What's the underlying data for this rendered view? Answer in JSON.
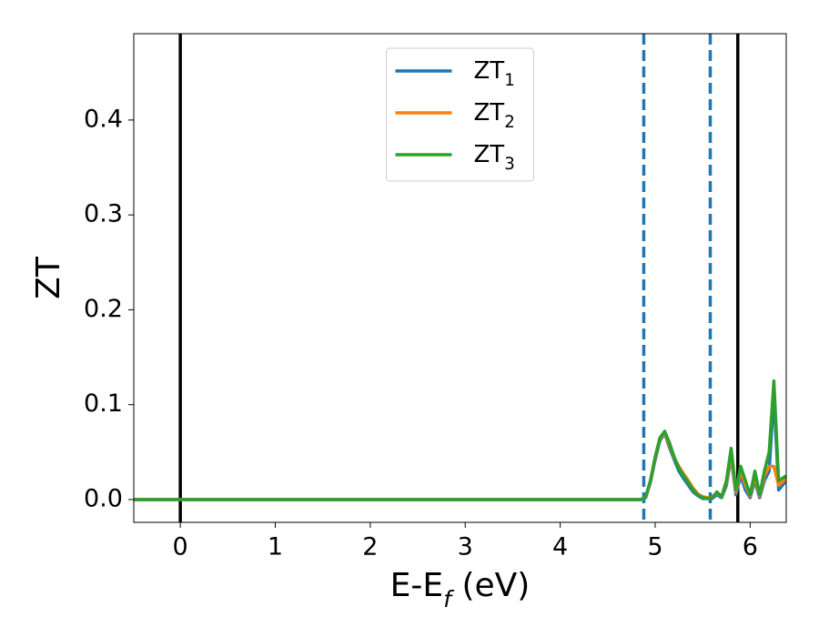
{
  "chart_data": {
    "type": "line",
    "x_label": "E-E_f (eV)",
    "y_label": "ZT",
    "x": [
      -0.49,
      4.85,
      4.9,
      4.95,
      5.0,
      5.05,
      5.1,
      5.15,
      5.2,
      5.25,
      5.3,
      5.35,
      5.4,
      5.45,
      5.5,
      5.55,
      5.6,
      5.65,
      5.7,
      5.75,
      5.8,
      5.85,
      5.9,
      5.95,
      6.0,
      6.05,
      6.1,
      6.15,
      6.2,
      6.25,
      6.3,
      6.38
    ],
    "series": [
      {
        "name": "ZT_1",
        "color": "#1f77b4",
        "values": [
          0,
          0,
          0.002,
          0.018,
          0.042,
          0.062,
          0.07,
          0.055,
          0.042,
          0.03,
          0.022,
          0.015,
          0.008,
          0.004,
          0.001,
          0.001,
          0.001,
          0.005,
          0.002,
          0.015,
          0.045,
          0.005,
          0.025,
          0.01,
          0.002,
          0.02,
          0.002,
          0.02,
          0.03,
          0.11,
          0.01,
          0.02
        ]
      },
      {
        "name": "ZT_2",
        "color": "#ff7f0e",
        "values": [
          0,
          0,
          0.003,
          0.019,
          0.044,
          0.064,
          0.071,
          0.058,
          0.044,
          0.035,
          0.027,
          0.02,
          0.012,
          0.006,
          0.003,
          0.002,
          0.002,
          0.007,
          0.003,
          0.018,
          0.048,
          0.008,
          0.03,
          0.015,
          0.004,
          0.025,
          0.004,
          0.025,
          0.035,
          0.035,
          0.015,
          0.022
        ]
      },
      {
        "name": "ZT_3",
        "color": "#2ca02c",
        "values": [
          0,
          0,
          0.003,
          0.02,
          0.045,
          0.065,
          0.072,
          0.06,
          0.045,
          0.033,
          0.025,
          0.018,
          0.01,
          0.005,
          0.002,
          0.001,
          0.002,
          0.008,
          0.003,
          0.02,
          0.054,
          0.01,
          0.035,
          0.02,
          0.005,
          0.03,
          0.005,
          0.03,
          0.05,
          0.125,
          0.02,
          0.025
        ]
      }
    ],
    "vlines": [
      {
        "x": 0,
        "color": "#000000",
        "style": "solid"
      },
      {
        "x": 5.87,
        "color": "#000000",
        "style": "solid"
      },
      {
        "x": 4.88,
        "color": "#1f77b4",
        "style": "dashed"
      },
      {
        "x": 5.58,
        "color": "#1f77b4",
        "style": "dashed"
      }
    ],
    "xlim": [
      -0.49,
      6.38
    ],
    "ylim": [
      -0.024,
      0.491
    ],
    "xticks": [
      0,
      1,
      2,
      3,
      4,
      5,
      6
    ],
    "yticks": [
      {
        "value": 0,
        "label": "0.0"
      },
      0.1,
      0.2,
      0.3,
      0.4
    ],
    "legend": "upper center"
  }
}
